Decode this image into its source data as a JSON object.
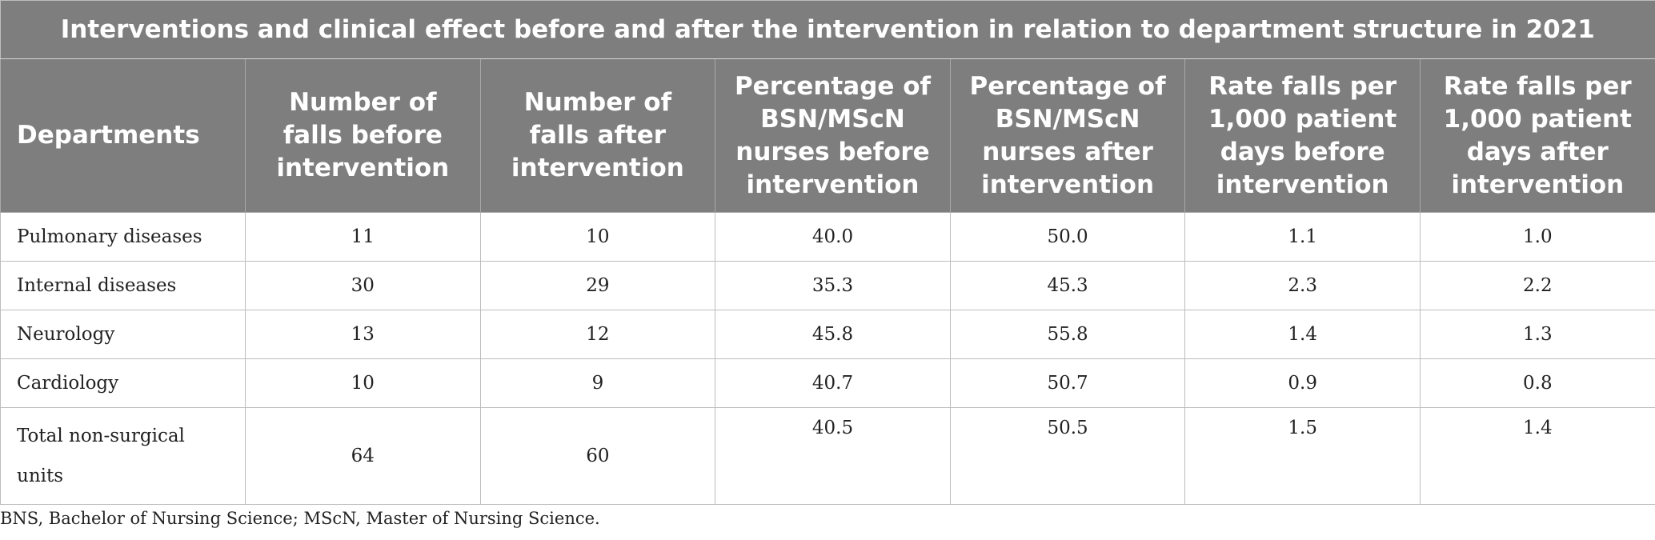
{
  "title": "Interventions and clinical effect before and after the intervention in relation to department structure in 2021",
  "columns": [
    "Departments",
    "Number of falls before intervention",
    "Number of falls after intervention",
    "Percentage of BSN/MScN nurses before intervention",
    "Percentage of BSN/MScN nurses after intervention",
    "Rate falls per 1,000 patient days before intervention",
    "Rate falls per 1,000 patient days after intervention"
  ],
  "rows": [
    [
      "Pulmonary diseases",
      "11",
      "10",
      "40.0",
      "50.0",
      "1.1",
      "1.0"
    ],
    [
      "Internal diseases",
      "30",
      "29",
      "35.3",
      "45.3",
      "2.3",
      "2.2"
    ],
    [
      "Neurology",
      "13",
      "12",
      "45.8",
      "55.8",
      "1.4",
      "1.3"
    ],
    [
      "Cardiology",
      "10",
      "9",
      "40.7",
      "50.7",
      "0.9",
      "0.8"
    ],
    [
      "Total non-surgical units",
      "64",
      "60",
      "40.5",
      "50.5",
      "1.5",
      "1.4"
    ]
  ],
  "footnote": "BNS, Bachelor of Nursing Science; MScN, Master of Nursing Science.",
  "colors": {
    "header_bg": "#7d7e7d",
    "header_text": "#ffffff",
    "grid": "#bdbdbd"
  }
}
